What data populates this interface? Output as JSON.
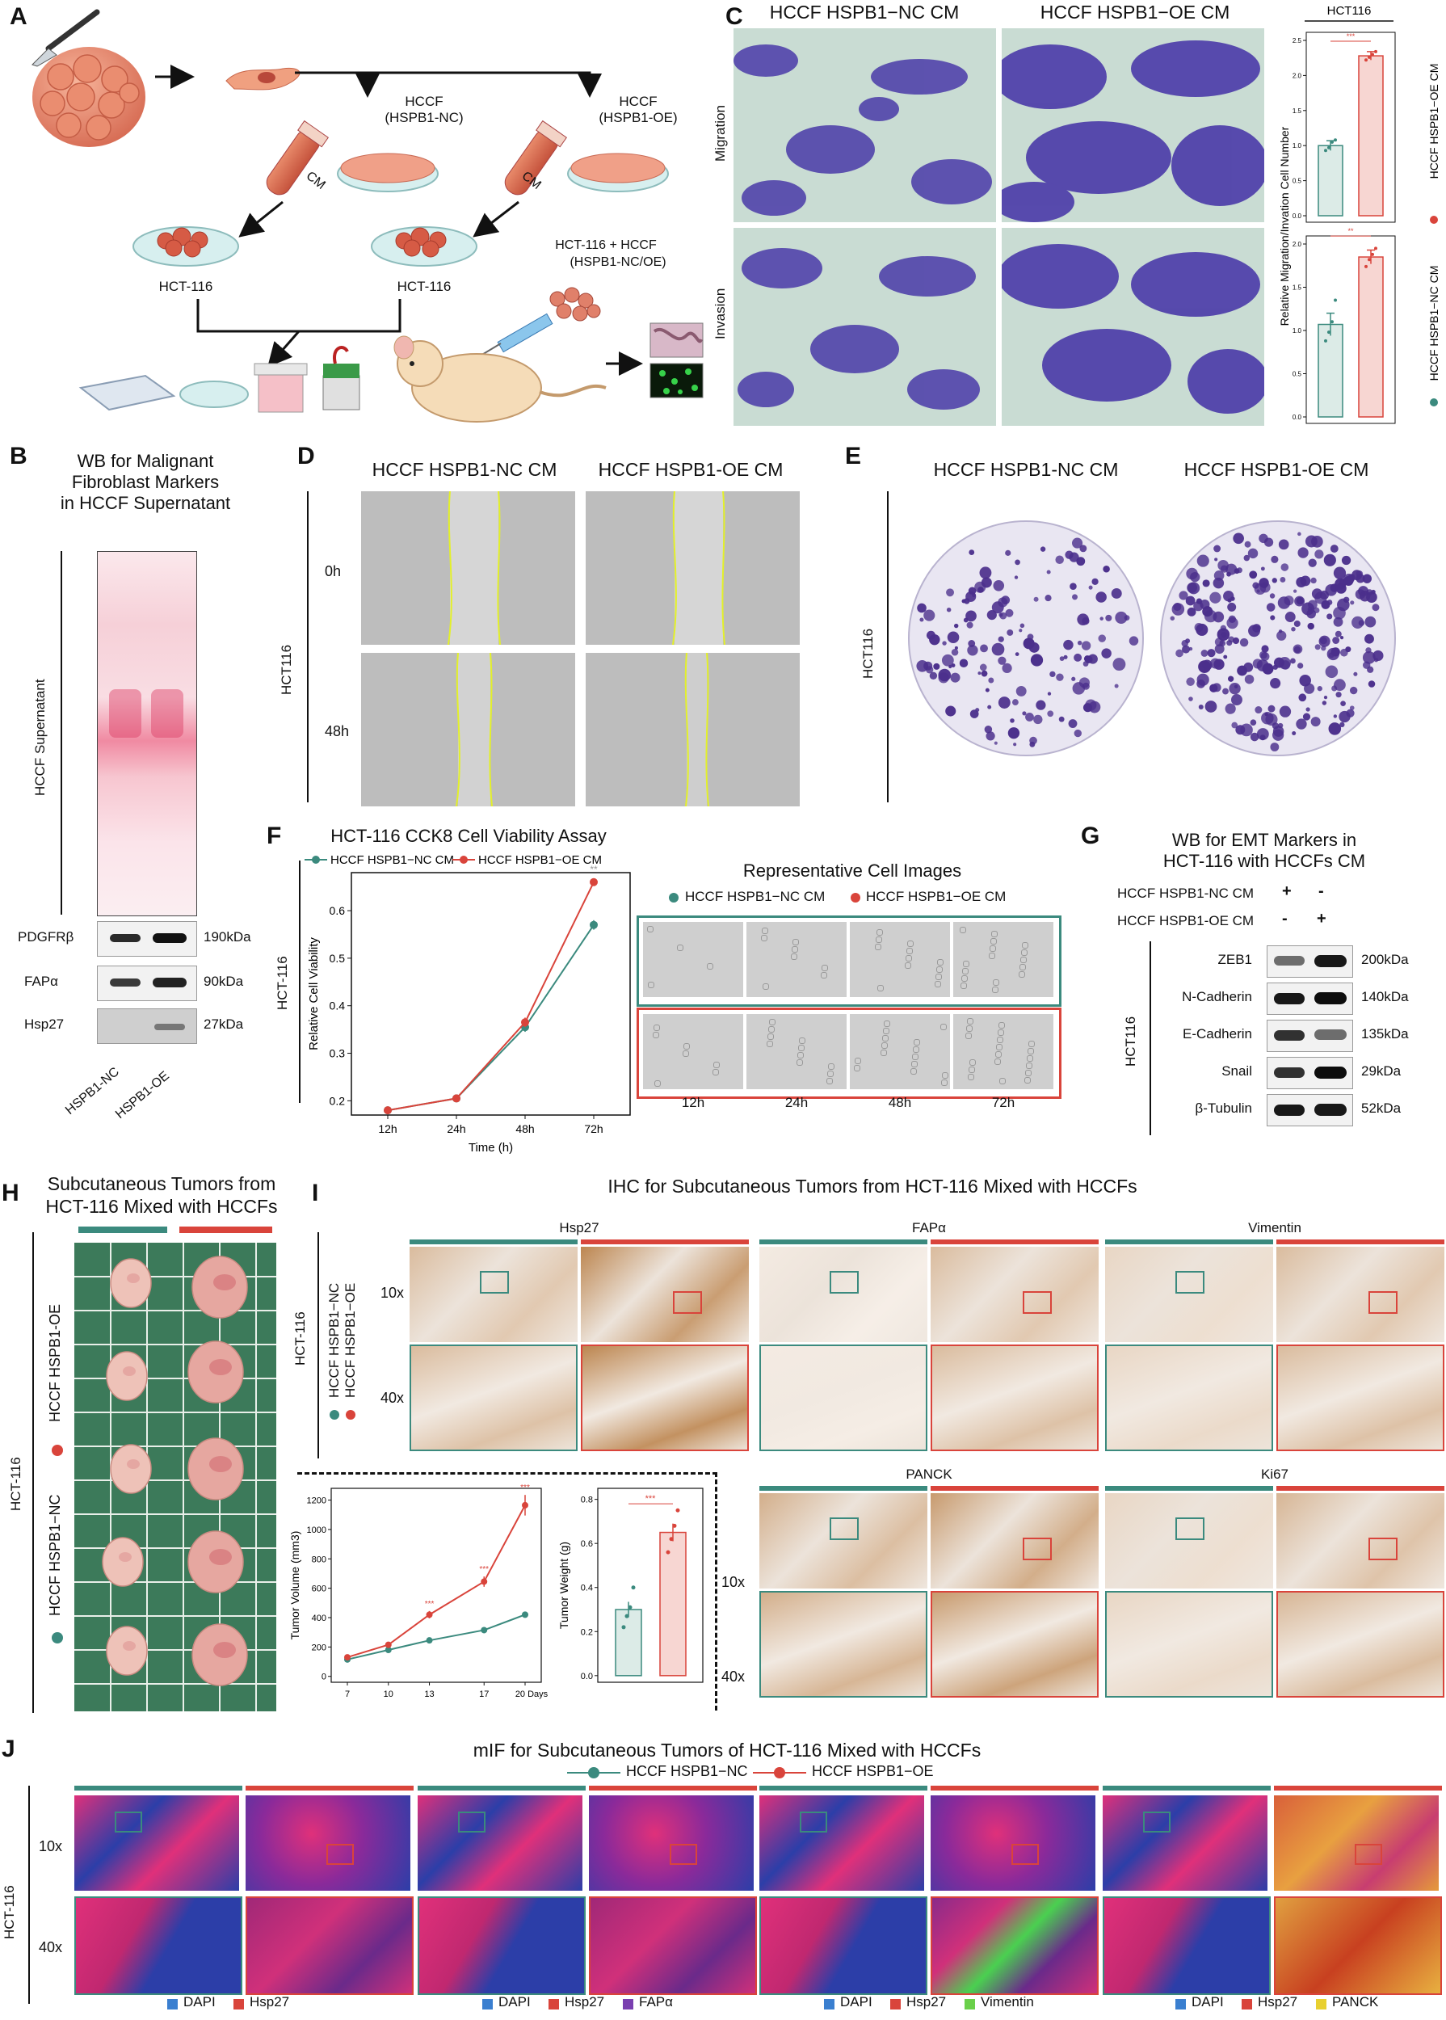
{
  "colors": {
    "nc": "#3b8a7e",
    "oe": "#d9443b",
    "crystal_violet": "#4a3aa8",
    "ihc_brown": "#b5783c",
    "mif_blue": "#2c3ea8",
    "mif_pink": "#e0307a"
  },
  "panels": {
    "A": "A",
    "B": "B",
    "C": "C",
    "D": "D",
    "E": "E",
    "F": "F",
    "G": "G",
    "H": "H",
    "I": "I",
    "J": "J"
  },
  "panelA": {
    "hccf_nc": "HCCF",
    "hccf_nc_sub": "(HSPB1-NC)",
    "hccf_oe": "HCCF",
    "hccf_oe_sub": "(HSPB1-OE)",
    "cm_left": "CM",
    "cm_right": "CM",
    "hct_left": "HCT-116",
    "hct_right": "HCT-116",
    "mix_line1": "HCT-116 + HCCF",
    "mix_line2": "(HSPB1-NC/OE)"
  },
  "panelB": {
    "title1": "WB for Malignant",
    "title2": "Fibroblast Markers",
    "title3": "in HCCF Supernatant",
    "ylabel": "HCCF Supernatant",
    "rows": [
      {
        "name": "PDGFRβ",
        "kda": "190kDa"
      },
      {
        "name": "FAPα",
        "kda": "90kDa"
      },
      {
        "name": "Hsp27",
        "kda": "27kDa"
      }
    ],
    "lanes": [
      "HSPB1-NC",
      "HSPB1-OE"
    ]
  },
  "panelC": {
    "col1": "HCCF HSPB1−NC CM",
    "col2": "HCCF HSPB1−OE CM",
    "row1": "Migration",
    "row2": "Invasion",
    "chart_title": "HCT116",
    "ylabel": "Relative  Migration/Invation Cell Number",
    "legend_oe": "HCCF HSPB1−OE CM",
    "legend_nc": "HCCF HSPB1−NC CM",
    "sig1": "***",
    "sig2": "**"
  },
  "panelD": {
    "col1": "HCCF HSPB1-NC CM",
    "col2": "HCCF HSPB1-OE CM",
    "ylabel": "HCT116",
    "row1": "0h",
    "row2": "48h"
  },
  "panelE": {
    "col1": "HCCF HSPB1-NC CM",
    "col2": "HCCF HSPB1-OE CM",
    "ylabel": "HCT116"
  },
  "panelF": {
    "title": "HCT-116 CCK8 Cell Viability Assay",
    "legend_nc": "HCCF HSPB1−NC CM",
    "legend_oe": "HCCF HSPB1−OE CM",
    "rep_title": "Representative Cell Images",
    "side_label": "HCT-116",
    "img_times": [
      "12h",
      "24h",
      "48h",
      "72h"
    ]
  },
  "panelG": {
    "title1": "WB for EMT Markers in",
    "title2": "HCT-116 with HCCFs CM",
    "cond1": "HCCF HSPB1-NC CM",
    "cond1_l1": "+",
    "cond1_l2": "-",
    "cond2": "HCCF HSPB1-OE CM",
    "cond2_l1": "-",
    "cond2_l2": "+",
    "side": "HCT116",
    "rows": [
      {
        "name": "ZEB1",
        "kda": "200kDa"
      },
      {
        "name": "N-Cadherin",
        "kda": "140kDa"
      },
      {
        "name": "E-Cadherin",
        "kda": "135kDa"
      },
      {
        "name": "Snail",
        "kda": "29kDa"
      },
      {
        "name": "β-Tubulin",
        "kda": "52kDa"
      }
    ]
  },
  "panelH": {
    "title1": "Subcutaneous Tumors from",
    "title2": "HCT-116 Mixed with HCCFs",
    "side": "HCT-116",
    "legend_oe": "HCCF HSPB1-OE",
    "legend_nc": "HCCF HSPB1−NC"
  },
  "panelI": {
    "title": "IHC for Subcutaneous Tumors from HCT-116 Mixed with HCCFs",
    "markers": [
      "Hsp27",
      "FAPα",
      "Vimentin",
      "PANCK",
      "Ki67"
    ],
    "mag1": "10x",
    "mag2": "40x",
    "side": "HCT-116",
    "legend_nc": "HCCF HSPB1−NC",
    "legend_oe": "HCCF HSPB1−OE"
  },
  "panelJ": {
    "title": "mIF for Subcutaneous Tumors of HCT-116 Mixed with HCCFs",
    "legend_nc": "HCCF HSPB1−NC",
    "legend_oe": "HCCF HSPB1−OE",
    "side": "HCT-116",
    "mag1": "10x",
    "mag2": "40x",
    "groups": [
      [
        {
          "name": "DAPI",
          "color": "#3a7fd0"
        },
        {
          "name": "Hsp27",
          "color": "#d9443b"
        }
      ],
      [
        {
          "name": "DAPI",
          "color": "#3a7fd0"
        },
        {
          "name": "Hsp27",
          "color": "#d9443b"
        },
        {
          "name": "FAPα",
          "color": "#7a3fb0"
        }
      ],
      [
        {
          "name": "DAPI",
          "color": "#3a7fd0"
        },
        {
          "name": "Hsp27",
          "color": "#d9443b"
        },
        {
          "name": "Vimentin",
          "color": "#6ad04a"
        }
      ],
      [
        {
          "name": "DAPI",
          "color": "#3a7fd0"
        },
        {
          "name": "Hsp27",
          "color": "#d9443b"
        },
        {
          "name": "PANCK",
          "color": "#e8d030"
        }
      ]
    ]
  },
  "chart_data": [
    {
      "type": "bar",
      "id": "C-migration",
      "categories": [
        "HCCF HSPB1−NC CM",
        "HCCF HSPB1−OE CM"
      ],
      "values": [
        1.0,
        2.28
      ],
      "errors": [
        0.07,
        0.06
      ],
      "points": [
        [
          0.93,
          0.97,
          1.05,
          1.08
        ],
        [
          2.22,
          2.26,
          2.3,
          2.34
        ]
      ],
      "ylim": [
        0,
        2.5
      ],
      "yticks": [
        0,
        0.5,
        1.0,
        1.5,
        2.0,
        2.5
      ],
      "sig": "***"
    },
    {
      "type": "bar",
      "id": "C-invasion",
      "categories": [
        "HCCF HSPB1−NC CM",
        "HCCF HSPB1−OE CM"
      ],
      "values": [
        1.07,
        1.85
      ],
      "errors": [
        0.13,
        0.08
      ],
      "points": [
        [
          0.88,
          0.98,
          1.1,
          1.35
        ],
        [
          1.74,
          1.82,
          1.88,
          1.95
        ]
      ],
      "ylim": [
        0,
        2.0
      ],
      "yticks": [
        0,
        0.5,
        1.0,
        1.5,
        2.0
      ],
      "sig": "**"
    },
    {
      "type": "line",
      "id": "F-cck8",
      "title": "HCT-116 CCK8 Cell Viability Assay",
      "x": [
        "12h",
        "24h",
        "48h",
        "72h"
      ],
      "xlabel": "Time (h)",
      "ylabel": "Relative Cell Viability",
      "ylim": [
        0.2,
        0.6
      ],
      "yticks": [
        0.2,
        0.3,
        0.4,
        0.5,
        0.6
      ],
      "series": [
        {
          "name": "HCCF HSPB1−NC CM",
          "values": [
            0.18,
            0.205,
            0.355,
            0.57
          ],
          "errors": [
            0.004,
            0.004,
            0.01,
            0.01
          ]
        },
        {
          "name": "HCCF HSPB1−OE CM",
          "values": [
            0.18,
            0.205,
            0.365,
            0.66
          ],
          "errors": [
            0.004,
            0.004,
            0.01,
            0.008
          ]
        }
      ],
      "sig": [
        "",
        "",
        "",
        "**"
      ]
    },
    {
      "type": "line",
      "id": "I-tumor-volume",
      "x": [
        "7",
        "10",
        "13",
        "17",
        "20 Days"
      ],
      "ylabel": "Tumor Volume (mm3)",
      "ylim": [
        0,
        1200
      ],
      "yticks": [
        0,
        200,
        400,
        600,
        800,
        1000,
        1200
      ],
      "series": [
        {
          "name": "HCCF HSPB1−NC",
          "values": [
            115,
            180,
            245,
            315,
            420
          ],
          "errors": [
            8,
            10,
            12,
            15,
            18
          ]
        },
        {
          "name": "HCCF HSPB1−OE",
          "values": [
            130,
            215,
            420,
            645,
            1165
          ],
          "errors": [
            10,
            15,
            25,
            35,
            70
          ]
        }
      ],
      "sig": [
        "",
        "",
        "***",
        "***",
        "***"
      ]
    },
    {
      "type": "bar",
      "id": "I-tumor-weight",
      "categories": [
        "HCCF HSPB1−NC",
        "HCCF HSPB1−OE"
      ],
      "values": [
        0.3,
        0.65
      ],
      "errors": [
        0.035,
        0.04
      ],
      "points": [
        [
          0.22,
          0.27,
          0.31,
          0.4
        ],
        [
          0.56,
          0.62,
          0.68,
          0.75
        ]
      ],
      "ylabel": "Tumor Weight (g)",
      "ylim": [
        0,
        0.8
      ],
      "yticks": [
        0,
        0.2,
        0.4,
        0.6,
        0.8
      ],
      "sig": "***"
    }
  ]
}
